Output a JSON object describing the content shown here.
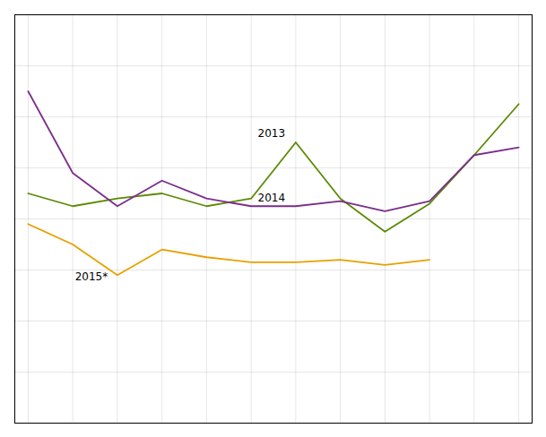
{
  "chart_data": {
    "type": "line",
    "x": [
      0,
      1,
      2,
      3,
      4,
      5,
      6,
      7,
      8,
      9,
      10,
      11
    ],
    "series": [
      {
        "name": "2013",
        "color": "#5a8a00",
        "values": [
          60,
          55,
          58,
          60,
          55,
          58,
          80,
          58,
          45,
          56,
          75,
          95
        ]
      },
      {
        "name": "2014",
        "color": "#7b2d8b",
        "values": [
          100,
          68,
          55,
          65,
          58,
          55,
          55,
          57,
          53,
          57,
          75,
          78
        ]
      },
      {
        "name": "2015*",
        "color": "#e8a000",
        "values": [
          48,
          40,
          28,
          38,
          35,
          33,
          33,
          34,
          32,
          34,
          null,
          null
        ]
      }
    ],
    "annotations": [
      {
        "text": "2013",
        "x": 5.15,
        "y": 82
      },
      {
        "text": "2014",
        "x": 5.15,
        "y": 57
      },
      {
        "text": "2015*",
        "x": 1.05,
        "y": 26
      }
    ],
    "xlim": [
      -0.3,
      11.3
    ],
    "ylim": [
      -30,
      130
    ],
    "xticks": [
      0,
      1,
      2,
      3,
      4,
      5,
      6,
      7,
      8,
      9,
      10,
      11
    ],
    "yticks": [
      -30,
      -10,
      10,
      30,
      50,
      70,
      90,
      110,
      130
    ],
    "grid": true,
    "tick_labels": false
  }
}
